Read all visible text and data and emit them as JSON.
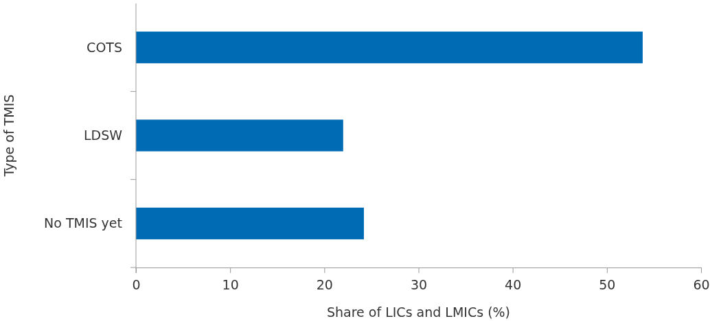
{
  "chart_data": {
    "type": "bar",
    "orientation": "horizontal",
    "categories": [
      "COTS",
      "LDSW",
      "No TMIS yet"
    ],
    "values": [
      53.8,
      22.0,
      24.2
    ],
    "color": "#006bb5",
    "xlim": [
      0,
      60
    ],
    "xticks": [
      0,
      10,
      20,
      30,
      40,
      50,
      60
    ],
    "xlabel": "Share of LICs and LMICs (%)",
    "ylabel": "Type of TMIS"
  }
}
